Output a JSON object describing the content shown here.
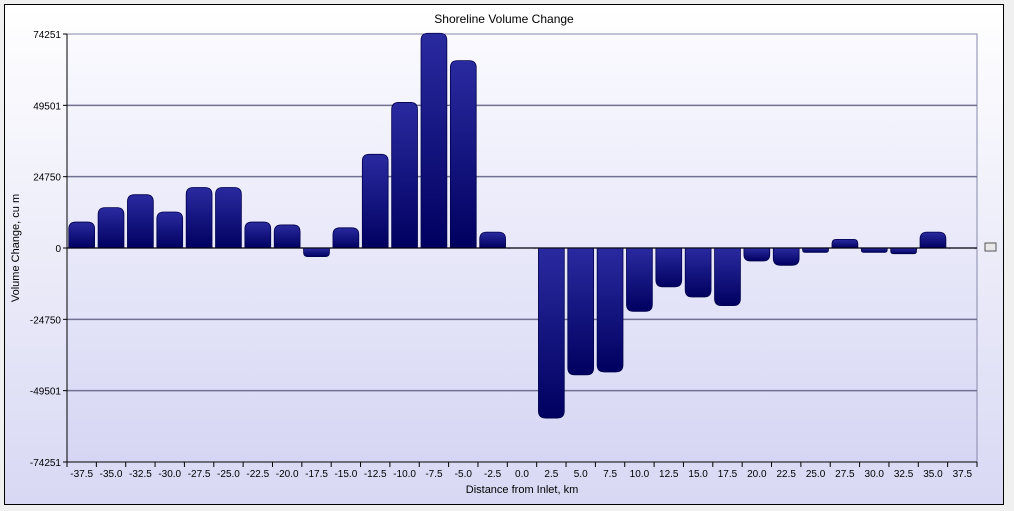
{
  "chart_data": {
    "type": "bar",
    "title": "Shoreline Volume Change",
    "xlabel": "Distance from Inlet, km",
    "ylabel": "Volume Change, cu m",
    "categories": [
      "-37.5",
      "-35.0",
      "-32.5",
      "-30.0",
      "-27.5",
      "-25.0",
      "-22.5",
      "-20.0",
      "-17.5",
      "-15.0",
      "-12.5",
      "-10.0",
      "-7.5",
      "-5.0",
      "-2.5",
      "0.0",
      "2.5",
      "5.0",
      "7.5",
      "10.0",
      "12.5",
      "15.0",
      "17.5",
      "20.0",
      "22.5",
      "25.0",
      "27.5",
      "30.0",
      "32.5",
      "35.0",
      "37.5"
    ],
    "values": [
      9000,
      14000,
      18500,
      12500,
      21000,
      21000,
      9000,
      8000,
      -3000,
      7000,
      32500,
      50500,
      74500,
      65000,
      5500,
      0,
      -59000,
      -44000,
      -43000,
      -22000,
      -13500,
      -17000,
      -20000,
      -4500,
      -6000,
      -1500,
      3000,
      -1500,
      -2000,
      5500,
      0
    ],
    "yticks": [
      74251,
      49501,
      24750,
      0,
      -24750,
      -49501,
      -74251
    ],
    "ytick_labels": [
      "74251",
      "49501",
      "24750",
      "0",
      "-24750",
      "-49501",
      "-74251"
    ],
    "ylim": [
      -74251,
      74251
    ],
    "grid": true,
    "colors": {
      "bar_top": "#2a2aa0",
      "bar_bottom": "#000060",
      "grid": "#707090",
      "plot_bg_top": "#fafaff",
      "plot_bg_bottom": "#d6d6f4"
    }
  }
}
